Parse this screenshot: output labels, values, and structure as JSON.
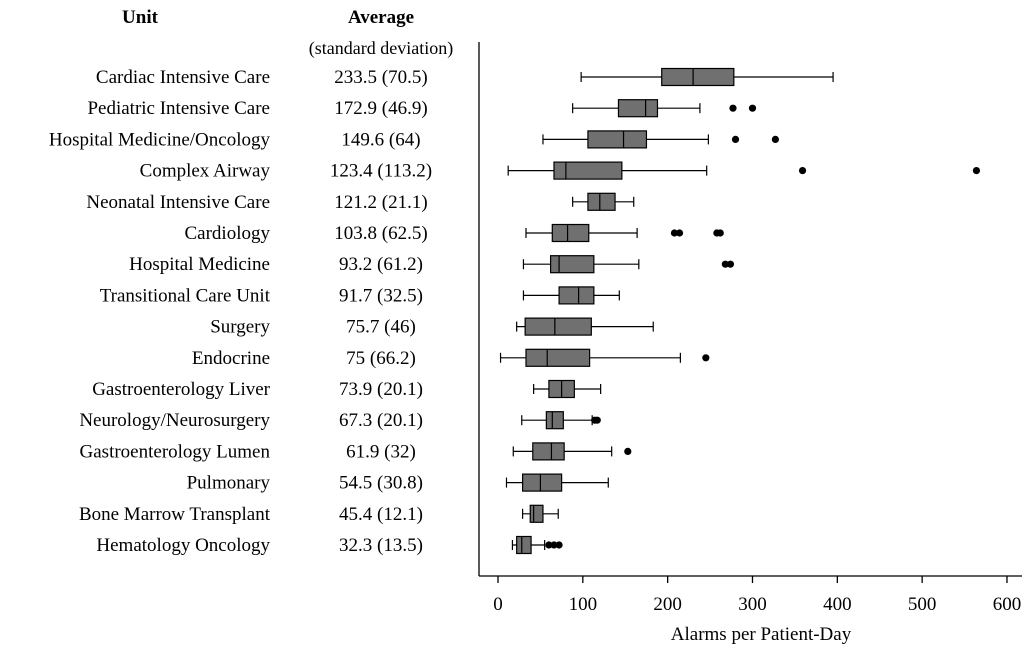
{
  "chart_data": {
    "type": "boxplot",
    "title": "",
    "header_unit": "Unit",
    "header_average": "Average",
    "header_average_sub": "(standard deviation)",
    "xlabel": "Alarms per Patient-Day",
    "xlim": [
      0,
      600
    ],
    "xticks": [
      0,
      100,
      200,
      300,
      400,
      500,
      600
    ],
    "grid": false,
    "box_color": "#707070",
    "units": [
      {
        "name": "Cardiac Intensive Care",
        "average": "233.5 (70.5)",
        "whisker_low": 98,
        "q1": 193,
        "median": 230,
        "q3": 278,
        "whisker_high": 395,
        "outliers": []
      },
      {
        "name": "Pediatric Intensive Care",
        "average": "172.9 (46.9)",
        "whisker_low": 88,
        "q1": 142,
        "median": 174,
        "q3": 188,
        "whisker_high": 238,
        "outliers": [
          277,
          300
        ]
      },
      {
        "name": "Hospital Medicine/Oncology",
        "average": "149.6 (64)",
        "whisker_low": 53,
        "q1": 106,
        "median": 148,
        "q3": 175,
        "whisker_high": 248,
        "outliers": [
          280,
          327
        ]
      },
      {
        "name": "Complex Airway",
        "average": "123.4 (113.2)",
        "whisker_low": 12,
        "q1": 66,
        "median": 80,
        "q3": 146,
        "whisker_high": 246,
        "outliers": [
          359,
          564
        ]
      },
      {
        "name": "Neonatal Intensive Care",
        "average": "121.2 (21.1)",
        "whisker_low": 88,
        "q1": 106,
        "median": 120,
        "q3": 138,
        "whisker_high": 160,
        "outliers": []
      },
      {
        "name": "Cardiology",
        "average": "103.8 (62.5)",
        "whisker_low": 33,
        "q1": 64,
        "median": 82,
        "q3": 107,
        "whisker_high": 164,
        "outliers": [
          208,
          214,
          258,
          262
        ]
      },
      {
        "name": "Hospital Medicine",
        "average": "93.2 (61.2)",
        "whisker_low": 30,
        "q1": 62,
        "median": 72,
        "q3": 113,
        "whisker_high": 166,
        "outliers": [
          268,
          274
        ]
      },
      {
        "name": "Transitional Care Unit",
        "average": "91.7 (32.5)",
        "whisker_low": 30,
        "q1": 72,
        "median": 95,
        "q3": 113,
        "whisker_high": 143,
        "outliers": []
      },
      {
        "name": "Surgery",
        "average": "75.7 (46)",
        "whisker_low": 22,
        "q1": 32,
        "median": 67,
        "q3": 110,
        "whisker_high": 183,
        "outliers": []
      },
      {
        "name": "Endocrine",
        "average": "75 (66.2)",
        "whisker_low": 3,
        "q1": 33,
        "median": 58,
        "q3": 108,
        "whisker_high": 215,
        "outliers": [
          245
        ]
      },
      {
        "name": "Gastroenterology Liver",
        "average": "73.9 (20.1)",
        "whisker_low": 42,
        "q1": 60,
        "median": 75,
        "q3": 90,
        "whisker_high": 121,
        "outliers": []
      },
      {
        "name": "Neurology/Neurosurgery",
        "average": "67.3 (20.1)",
        "whisker_low": 28,
        "q1": 57,
        "median": 64,
        "q3": 77,
        "whisker_high": 111,
        "outliers": [
          114,
          117
        ]
      },
      {
        "name": "Gastroenterology Lumen",
        "average": "61.9 (32)",
        "whisker_low": 18,
        "q1": 41,
        "median": 63,
        "q3": 78,
        "whisker_high": 134,
        "outliers": [
          153
        ]
      },
      {
        "name": "Pulmonary",
        "average": "54.5 (30.8)",
        "whisker_low": 10,
        "q1": 29,
        "median": 50,
        "q3": 75,
        "whisker_high": 130,
        "outliers": []
      },
      {
        "name": "Bone Marrow Transplant",
        "average": "45.4 (12.1)",
        "whisker_low": 29,
        "q1": 38,
        "median": 42,
        "q3": 53,
        "whisker_high": 71,
        "outliers": []
      },
      {
        "name": "Hematology Oncology",
        "average": "32.3 (13.5)",
        "whisker_low": 17,
        "q1": 22,
        "median": 28,
        "q3": 39,
        "whisker_high": 55,
        "outliers": [
          60,
          66,
          72
        ]
      }
    ]
  }
}
